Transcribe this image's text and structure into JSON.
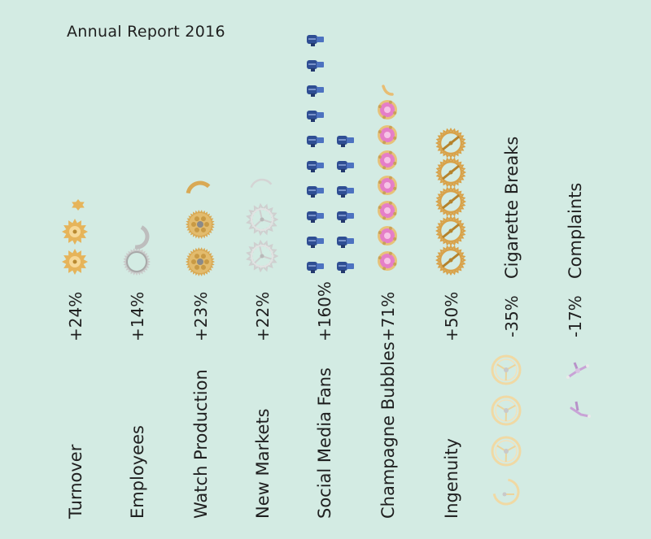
{
  "title": "Annual Report 2016",
  "chart_data": {
    "type": "bar",
    "style": "pictograph",
    "title": "Annual Report 2016",
    "xlabel": "",
    "ylabel": "",
    "grid": false,
    "unit": "%",
    "categories": [
      "Turnover",
      "Employees",
      "Watch Production",
      "New Markets",
      "Social Media Fans",
      "Champagne Bubbles",
      "Ingenuity",
      "Cigarette Breaks",
      "Complaints"
    ],
    "values": [
      24,
      14,
      23,
      22,
      160,
      71,
      50,
      -35,
      -17
    ],
    "value_labels": [
      "+24%",
      "+14%",
      "+23%",
      "+22%",
      "+160%",
      "+71%",
      "+50%",
      "-35%",
      "-17%"
    ],
    "icons": [
      "gold-gear-icon",
      "silver-ring-gear-icon",
      "gold-wheel-gear-icon",
      "silver-escape-wheel-icon",
      "blue-screw-icon",
      "pink-jewel-setting-icon",
      "gold-balance-wheel-icon",
      "pale-balance-wheel-icon",
      "lilac-lever-icon"
    ],
    "colors": [
      "#e6b45a",
      "#b5b5b5",
      "#d9a954",
      "#d8d8d8",
      "#3d5ea8",
      "#e37fc7",
      "#d8a24a",
      "#f2dcaa",
      "#c8a3d6"
    ]
  }
}
